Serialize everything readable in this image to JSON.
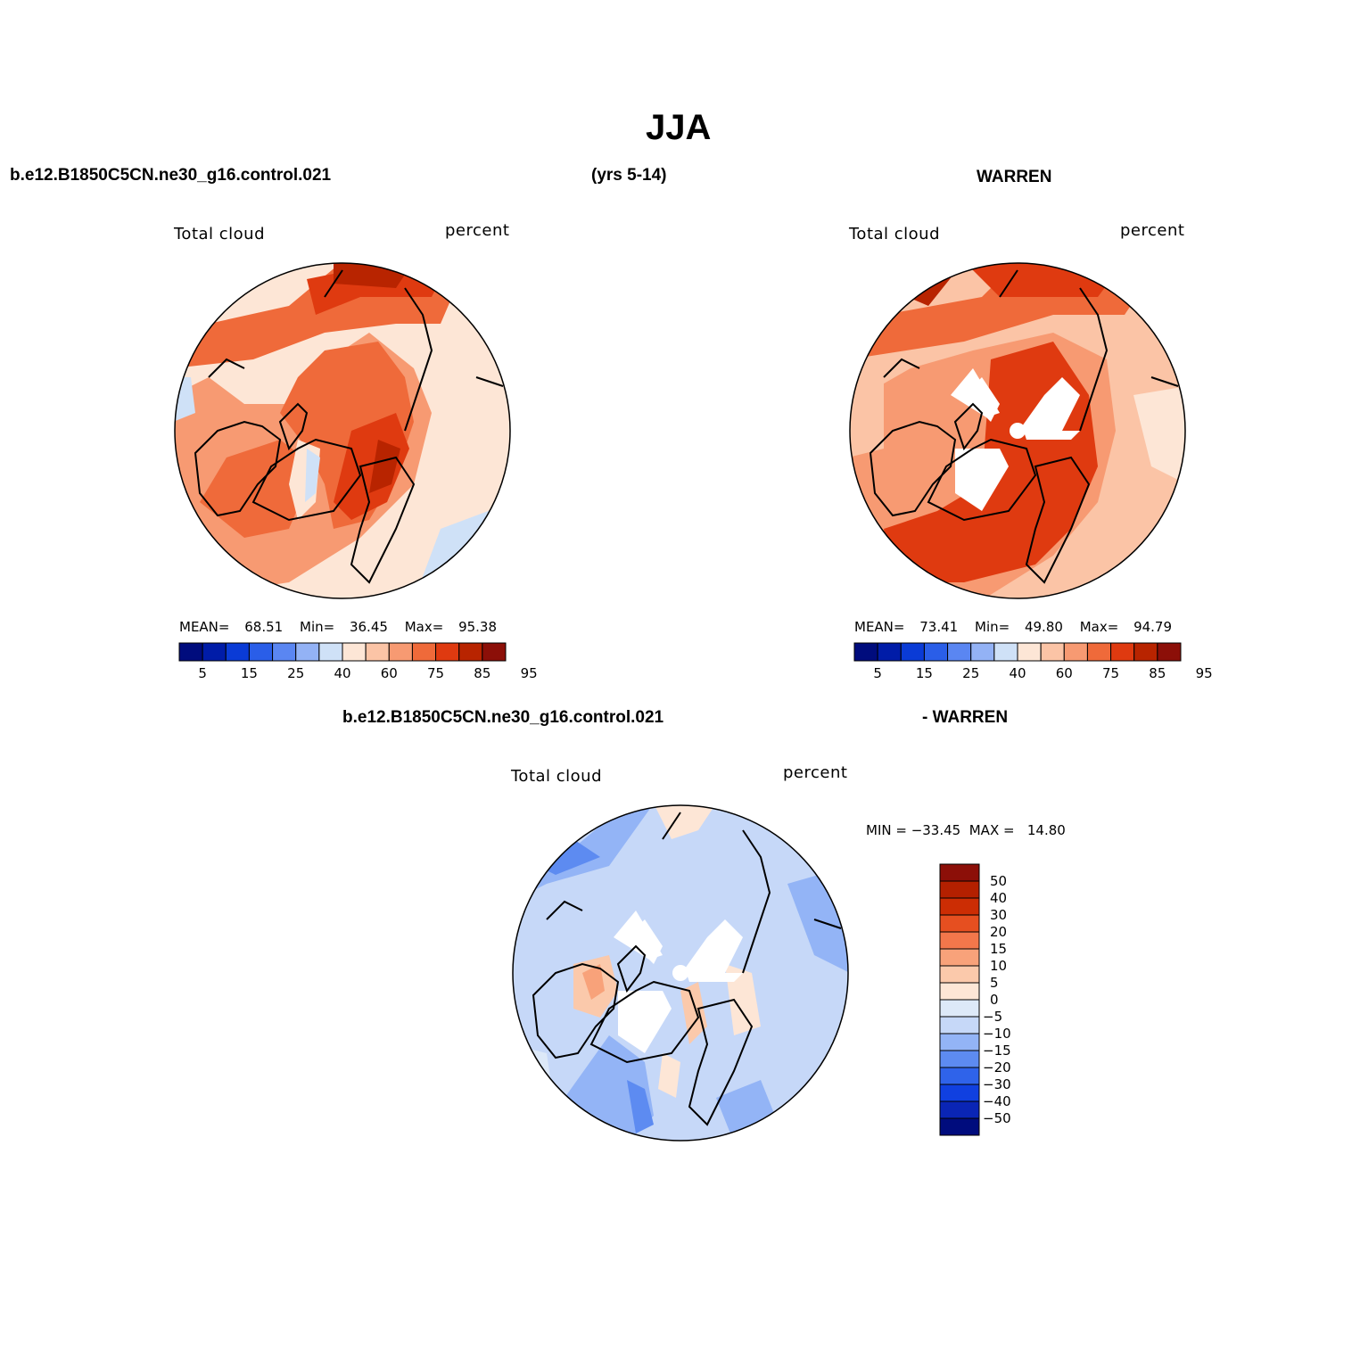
{
  "title": "JJA",
  "header": {
    "case_name": "b.e12.B1850C5CN.ne30_g16.control.021",
    "years": "(yrs 5-14)",
    "obs_name": "WARREN",
    "diff_case": "b.e12.B1850C5CN.ne30_g16.control.021",
    "diff_obs": "- WARREN"
  },
  "panels": [
    {
      "id": "model",
      "variable": "Total cloud",
      "units": "percent",
      "mean_label": "MEAN=",
      "mean": "68.51",
      "min_label": "Min=",
      "min": "36.45",
      "max_label": "Max=",
      "max": "95.38"
    },
    {
      "id": "obs",
      "variable": "Total cloud",
      "units": "percent",
      "mean_label": "MEAN=",
      "mean": "73.41",
      "min_label": "Min=",
      "min": "49.80",
      "max_label": "Max=",
      "max": "94.79"
    },
    {
      "id": "diff",
      "variable": "Total cloud",
      "units": "percent",
      "minmax_text": "MIN = −33.45  MAX =   14.80"
    }
  ],
  "colorbar_abs": {
    "colors": [
      "#000c7d",
      "#001ca8",
      "#0a3bd6",
      "#2a5ee8",
      "#5a86f2",
      "#93b2f5",
      "#cfe1f7",
      "#fde6d6",
      "#fbc4a6",
      "#f79a72",
      "#ef6a3a",
      "#df3a10",
      "#b82400",
      "#8c0f08"
    ],
    "tick_labels": [
      "5",
      "15",
      "25",
      "40",
      "60",
      "75",
      "85",
      "95"
    ]
  },
  "colorbar_diff": {
    "colors": [
      "#000c7d",
      "#0a25b5",
      "#1040e0",
      "#2f63ea",
      "#5d8bf1",
      "#93b4f6",
      "#c6d8f8",
      "#dde9f8",
      "#fde6d6",
      "#fbc9ab",
      "#f8a27a",
      "#f3774b",
      "#e64f20",
      "#cc2d04",
      "#b42000",
      "#8c0f08"
    ],
    "tick_labels": [
      "50",
      "40",
      "30",
      "20",
      "15",
      "10",
      "5",
      "0",
      "−5",
      "−10",
      "−15",
      "−20",
      "−30",
      "−40",
      "−50"
    ]
  }
}
